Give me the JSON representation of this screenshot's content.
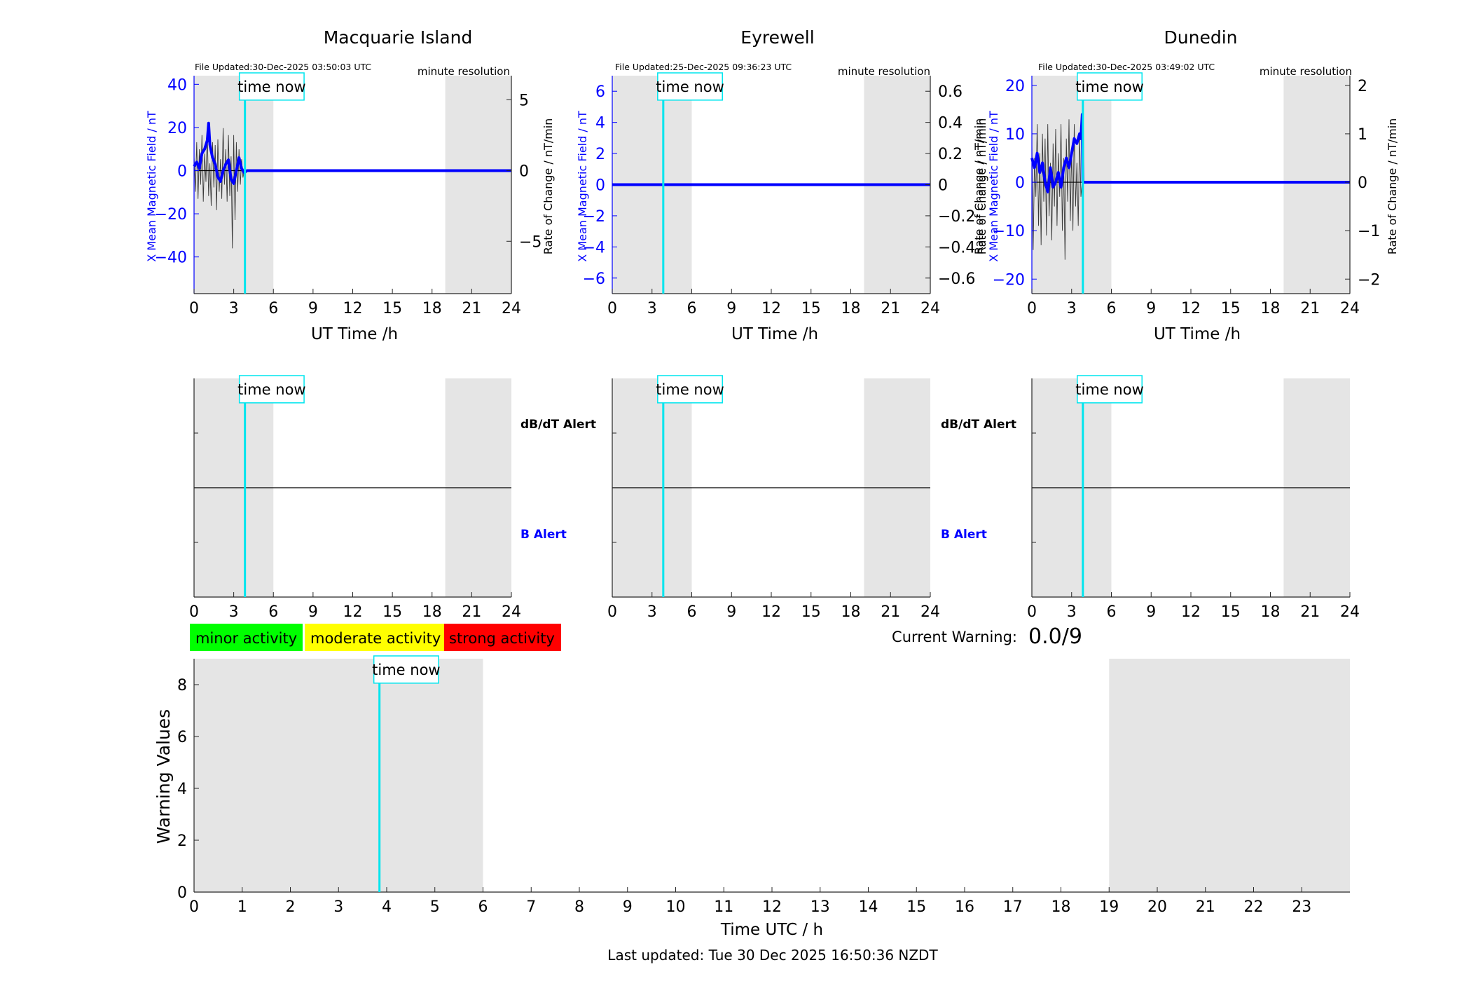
{
  "figure": {
    "colors": {
      "shade": "#e5e5e5",
      "axis": "#262626",
      "blue": "#0000ff",
      "thin": "#3a3a3a",
      "cyan": "#00e5ee",
      "zero_line": "#000000"
    },
    "night_shading_hours": [
      [
        0,
        6
      ],
      [
        19,
        24
      ]
    ],
    "time_now_label": "time now",
    "time_now_hour": 3.85,
    "resolution_label": "minute resolution",
    "left_axis_label": "X Mean Magnetic Field / nT",
    "right_axis_label": "Rate of Change / nT/min",
    "x_axis_label": "UT Time /h",
    "db_alert_label": "dB/dT Alert",
    "b_alert_label": "B Alert",
    "legend": [
      {
        "label": "minor activity",
        "color": "#00ff00"
      },
      {
        "label": "moderate activity",
        "color": "#ffff00"
      },
      {
        "label": "strong activity",
        "color": "#ff0000"
      }
    ],
    "current_warning_label": "Current Warning:",
    "current_warning_value": "0.0/9",
    "warning_ylabel": "Warning Values",
    "warning_xlabel": "Time UTC / h",
    "last_updated": "Last updated: Tue 30 Dec 2025 16:50:36 NZDT"
  },
  "chart_data": [
    {
      "type": "line",
      "title": "Macquarie Island",
      "file_updated": "File Updated:30-Dec-2025 03:50:03 UTC",
      "xlabel": "UT Time /h",
      "ylabel": "X Mean Magnetic Field / nT",
      "y2label": "Rate of Change / nT/min",
      "xlim": [
        0,
        24
      ],
      "xticks": [
        0,
        3,
        6,
        9,
        12,
        15,
        18,
        21,
        24
      ],
      "ylim": [
        -57,
        44
      ],
      "yticks": [
        -40,
        -20,
        0,
        20,
        40
      ],
      "y2lim": [
        -8.7,
        6.7
      ],
      "y2ticks": [
        -5,
        0,
        5
      ],
      "series": [
        {
          "role": "mean_field",
          "x": [
            0,
            0.2,
            0.4,
            0.6,
            0.8,
            1.0,
            1.1,
            1.2,
            1.4,
            1.6,
            1.8,
            2.0,
            2.2,
            2.4,
            2.6,
            2.8,
            3.0,
            3.2,
            3.4,
            3.6,
            3.8,
            4.0,
            24
          ],
          "y": [
            2,
            4,
            1,
            8,
            10,
            14,
            22,
            12,
            6,
            3,
            -3,
            -5,
            0,
            3,
            5,
            -4,
            -6,
            0,
            6,
            1,
            -1,
            0,
            0
          ]
        },
        {
          "role": "rate_of_change",
          "x": [
            0,
            0.1,
            0.2,
            0.3,
            0.4,
            0.5,
            0.6,
            0.7,
            0.8,
            0.9,
            1.0,
            1.1,
            1.2,
            1.3,
            1.4,
            1.5,
            1.6,
            1.7,
            1.8,
            1.9,
            2.0,
            2.1,
            2.2,
            2.3,
            2.4,
            2.5,
            2.6,
            2.7,
            2.8,
            2.9,
            3.0,
            3.1,
            3.2,
            3.3,
            3.4,
            3.5,
            3.6,
            3.7,
            3.8
          ],
          "y": [
            1,
            -1.5,
            2,
            -2,
            1.5,
            -1,
            2.5,
            -2.2,
            1.2,
            -0.8,
            2.8,
            -1.8,
            0.5,
            -2.5,
            2,
            -1.2,
            1.8,
            -2.8,
            2.2,
            -1.5,
            0.8,
            -2,
            3,
            -1,
            1.5,
            -2.2,
            2.5,
            -1.8,
            1,
            -5.5,
            2.5,
            -3.5,
            2,
            -1.5,
            1.5,
            -1,
            0.8,
            -0.5,
            0
          ]
        }
      ]
    },
    {
      "type": "line",
      "title": "Eyrewell",
      "file_updated": "File Updated:25-Dec-2025 09:36:23 UTC",
      "xlabel": "UT Time /h",
      "ylabel": "X Mean Magnetic Field / nT",
      "y2label": "Rate of Change / nT/min",
      "xlim": [
        0,
        24
      ],
      "xticks": [
        0,
        3,
        6,
        9,
        12,
        15,
        18,
        21,
        24
      ],
      "ylim": [
        -7,
        7
      ],
      "yticks": [
        -6,
        -4,
        -2,
        0,
        2,
        4,
        6
      ],
      "y2lim": [
        -0.7,
        0.7
      ],
      "y2ticks": [
        -0.6,
        -0.4,
        -0.2,
        0,
        0.2,
        0.4,
        0.6
      ],
      "series": [
        {
          "role": "mean_field",
          "x": [
            0,
            24
          ],
          "y": [
            0,
            0
          ]
        }
      ]
    },
    {
      "type": "line",
      "title": "Dunedin",
      "file_updated": "File Updated:30-Dec-2025 03:49:02 UTC",
      "xlabel": "UT Time /h",
      "ylabel": "X Mean Magnetic Field / nT",
      "y2label": "Rate of Change / nT/min",
      "xlim": [
        0,
        24
      ],
      "xticks": [
        0,
        3,
        6,
        9,
        12,
        15,
        18,
        21,
        24
      ],
      "ylim": [
        -23,
        22
      ],
      "yticks": [
        -20,
        -10,
        0,
        10,
        20
      ],
      "y2lim": [
        -2.3,
        2.2
      ],
      "y2ticks": [
        -2,
        -1,
        0,
        1,
        2
      ],
      "series": [
        {
          "role": "mean_field",
          "x": [
            0,
            0.2,
            0.4,
            0.6,
            0.8,
            1.0,
            1.2,
            1.4,
            1.6,
            1.8,
            2.0,
            2.2,
            2.4,
            2.6,
            2.8,
            3.0,
            3.2,
            3.4,
            3.6,
            3.7,
            3.8,
            3.85,
            3.9,
            24
          ],
          "y": [
            5,
            3,
            6,
            2,
            4,
            0,
            -2,
            3,
            -1,
            0,
            2,
            -1,
            3,
            5,
            3,
            6,
            9,
            8,
            10,
            9,
            14,
            0,
            0,
            0
          ]
        },
        {
          "role": "rate_of_change",
          "x": [
            0,
            0.1,
            0.2,
            0.3,
            0.4,
            0.5,
            0.6,
            0.7,
            0.8,
            0.9,
            1.0,
            1.1,
            1.2,
            1.3,
            1.4,
            1.5,
            1.6,
            1.7,
            1.8,
            1.9,
            2.0,
            2.1,
            2.2,
            2.3,
            2.4,
            2.5,
            2.6,
            2.7,
            2.8,
            2.9,
            3.0,
            3.1,
            3.2,
            3.3,
            3.4,
            3.5,
            3.6,
            3.7,
            3.8
          ],
          "y": [
            0.8,
            -1.4,
            0.5,
            -0.3,
            1.2,
            -0.9,
            0.6,
            -1.3,
            1.0,
            -0.4,
            0.9,
            -1.1,
            1.2,
            -0.7,
            0.4,
            -1.2,
            0.8,
            -0.5,
            1.1,
            -0.9,
            0.6,
            -0.3,
            1.2,
            -1.0,
            0.5,
            -1.6,
            0.9,
            -0.4,
            1.3,
            -0.8,
            0.7,
            -1.0,
            1.2,
            -0.5,
            0.4,
            -0.9,
            1.0,
            -0.3,
            0
          ]
        }
      ]
    },
    {
      "type": "line",
      "title": "",
      "xlim": [
        0,
        24
      ],
      "xticks": [
        0,
        3,
        6,
        9,
        12,
        15,
        18,
        21,
        24
      ],
      "rows": [
        "dB/dT Alert",
        "B Alert"
      ],
      "series": []
    },
    {
      "type": "line",
      "title": "",
      "xlim": [
        0,
        24
      ],
      "xticks": [
        0,
        3,
        6,
        9,
        12,
        15,
        18,
        21,
        24
      ],
      "rows": [
        "dB/dT Alert",
        "B Alert"
      ],
      "series": []
    },
    {
      "type": "line",
      "title": "",
      "xlim": [
        0,
        24
      ],
      "xticks": [
        0,
        3,
        6,
        9,
        12,
        15,
        18,
        21,
        24
      ],
      "rows": [],
      "series": []
    },
    {
      "type": "bar",
      "title": "",
      "xlabel": "Time UTC / h",
      "ylabel": "Warning Values",
      "xlim": [
        0,
        24
      ],
      "xticks": [
        0,
        1,
        2,
        3,
        4,
        5,
        6,
        7,
        8,
        9,
        10,
        11,
        12,
        13,
        14,
        15,
        16,
        17,
        18,
        19,
        20,
        21,
        22,
        23
      ],
      "ylim": [
        0,
        9
      ],
      "yticks": [
        0,
        2,
        4,
        6,
        8
      ],
      "series": []
    }
  ]
}
